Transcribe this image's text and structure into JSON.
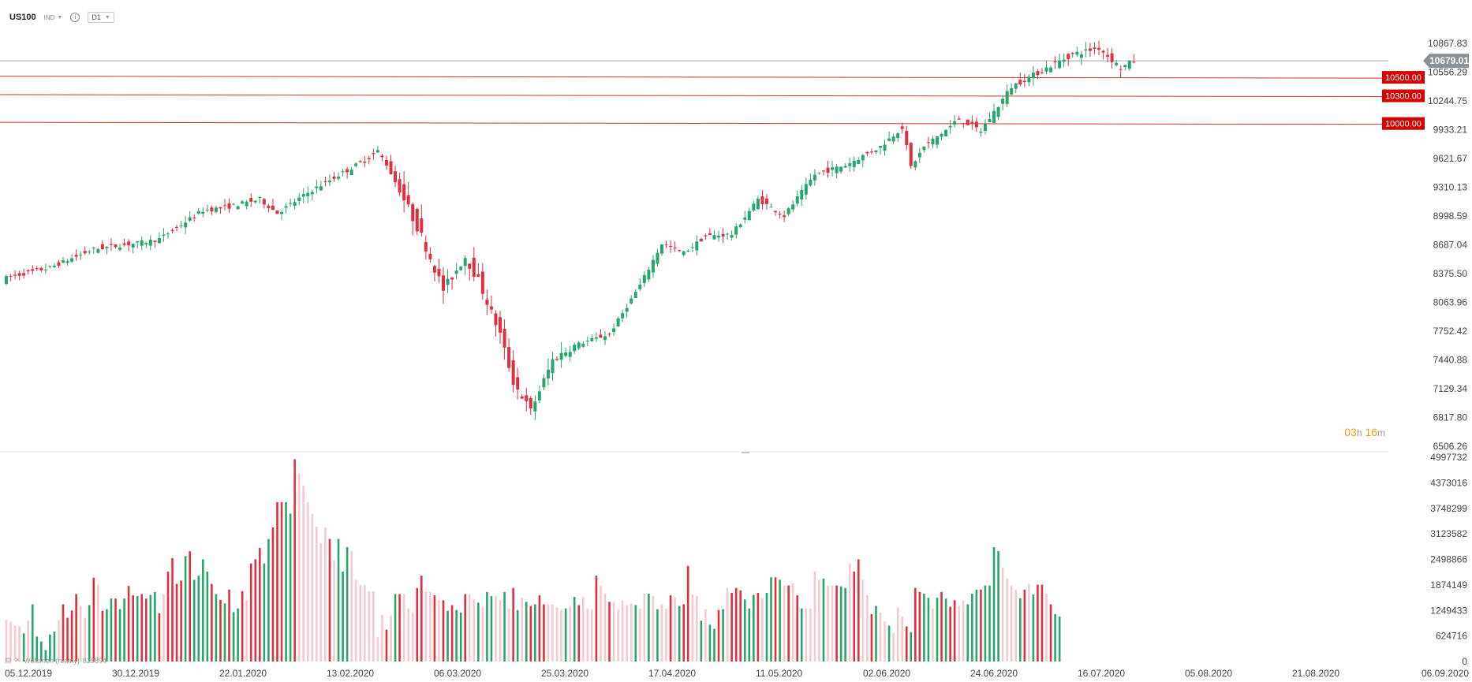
{
  "toolbar": {
    "symbol": "US100",
    "symbol_type": "IND",
    "timeframe": "D1"
  },
  "countdown": {
    "hours": "03",
    "h_unit": "h",
    "minutes": "16",
    "m_unit": "m"
  },
  "volume_legend": {
    "label": "Wolumen (realny)",
    "value": "829894"
  },
  "colors": {
    "up": "#26a66b",
    "down": "#e0303d",
    "level_line": "#d0312d",
    "level_label_bg": "#d40000",
    "last_price_bg": "#8a9196",
    "vol_pale": "#f6c9d0"
  },
  "chart_data": {
    "type": "candlestick",
    "symbol": "US100",
    "price_axis": {
      "ticks": [
        10867.83,
        10556.29,
        10244.75,
        9933.21,
        9621.67,
        9310.13,
        8998.59,
        8687.04,
        8375.5,
        8063.96,
        7752.42,
        7440.88,
        7129.34,
        6817.8,
        6506.26
      ]
    },
    "volume_axis": {
      "ticks": [
        4997732,
        4373016,
        3748299,
        3123582,
        2498866,
        1874149,
        1249433,
        624716,
        0
      ]
    },
    "x_axis": {
      "ticks": [
        "05.12.2019",
        "30.12.2019",
        "22.01.2020",
        "13.02.2020",
        "06.03.2020",
        "25.03.2020",
        "17.04.2020",
        "11.05.2020",
        "02.06.2020",
        "24.06.2020",
        "16.07.2020",
        "05.08.2020",
        "21.08.2020",
        "06.09.2020"
      ]
    },
    "last_price": 10679.01,
    "horizontal_levels": [
      10500.0,
      10300.0,
      10000.0
    ],
    "close_waypoints": [
      [
        0,
        8330
      ],
      [
        10,
        8440
      ],
      [
        20,
        8640
      ],
      [
        32,
        8720
      ],
      [
        35,
        8750
      ],
      [
        45,
        9060
      ],
      [
        50,
        9090
      ],
      [
        58,
        9180
      ],
      [
        62,
        9030
      ],
      [
        70,
        9280
      ],
      [
        82,
        9600
      ],
      [
        85,
        9700
      ],
      [
        87,
        9560
      ],
      [
        92,
        9080
      ],
      [
        95,
        8780
      ],
      [
        100,
        8200
      ],
      [
        105,
        8560
      ],
      [
        108,
        8300
      ],
      [
        113,
        7720
      ],
      [
        116,
        7200
      ],
      [
        120,
        6890
      ],
      [
        125,
        7440
      ],
      [
        130,
        7600
      ],
      [
        138,
        7720
      ],
      [
        145,
        8250
      ],
      [
        150,
        8700
      ],
      [
        155,
        8600
      ],
      [
        160,
        8780
      ],
      [
        166,
        8800
      ],
      [
        172,
        9180
      ],
      [
        178,
        9000
      ],
      [
        185,
        9450
      ],
      [
        192,
        9550
      ],
      [
        200,
        9750
      ],
      [
        205,
        9960
      ],
      [
        207,
        9530
      ],
      [
        210,
        9750
      ],
      [
        215,
        9930
      ],
      [
        218,
        10050
      ],
      [
        223,
        9920
      ],
      [
        230,
        10400
      ],
      [
        238,
        10600
      ],
      [
        244,
        10750
      ],
      [
        250,
        10820
      ],
      [
        255,
        10600
      ],
      [
        258,
        10679
      ]
    ],
    "volume_series": [
      [
        1020000,
        0
      ],
      [
        980000,
        0
      ],
      [
        880000,
        0
      ],
      [
        860000,
        0
      ],
      [
        690000,
        1
      ],
      [
        1000000,
        0
      ],
      [
        1400000,
        1
      ],
      [
        610000,
        1
      ],
      [
        490000,
        1
      ],
      [
        280000,
        1
      ],
      [
        660000,
        1
      ],
      [
        730000,
        1
      ],
      [
        1010000,
        0
      ],
      [
        1400000,
        2
      ],
      [
        1070000,
        2
      ],
      [
        1250000,
        2
      ],
      [
        1650000,
        2
      ],
      [
        1360000,
        0
      ],
      [
        1070000,
        0
      ],
      [
        1380000,
        1
      ],
      [
        2050000,
        2
      ],
      [
        1880000,
        0
      ],
      [
        1240000,
        2
      ],
      [
        1280000,
        1
      ],
      [
        1540000,
        1
      ],
      [
        1540000,
        2
      ],
      [
        1280000,
        1
      ],
      [
        1540000,
        1
      ],
      [
        1850000,
        2
      ],
      [
        1620000,
        2
      ],
      [
        1600000,
        1
      ],
      [
        1650000,
        2
      ],
      [
        1540000,
        2
      ],
      [
        1630000,
        1
      ],
      [
        1700000,
        1
      ],
      [
        1180000,
        2
      ],
      [
        1650000,
        0
      ],
      [
        2200000,
        2
      ],
      [
        2530000,
        2
      ],
      [
        1900000,
        2
      ],
      [
        1980000,
        2
      ],
      [
        2580000,
        1
      ],
      [
        2700000,
        2
      ],
      [
        2000000,
        1
      ],
      [
        2100000,
        1
      ],
      [
        2500000,
        1
      ],
      [
        2200000,
        1
      ],
      [
        1900000,
        2
      ],
      [
        1650000,
        1
      ],
      [
        1510000,
        2
      ],
      [
        1420000,
        1
      ],
      [
        1760000,
        2
      ],
      [
        1210000,
        1
      ],
      [
        1300000,
        1
      ],
      [
        1720000,
        2
      ],
      [
        1500000,
        0
      ],
      [
        2400000,
        2
      ],
      [
        2500000,
        2
      ],
      [
        2780000,
        2
      ],
      [
        2400000,
        1
      ],
      [
        3000000,
        1
      ],
      [
        3280000,
        2
      ],
      [
        3900000,
        2
      ],
      [
        3900000,
        2
      ],
      [
        3900000,
        1
      ],
      [
        3620000,
        1
      ],
      [
        4950000,
        2
      ],
      [
        4600000,
        0
      ],
      [
        4300000,
        0
      ],
      [
        3900000,
        0
      ],
      [
        3620000,
        0
      ],
      [
        3300000,
        0
      ],
      [
        2900000,
        0
      ],
      [
        3280000,
        0
      ],
      [
        3000000,
        2
      ],
      [
        2470000,
        0
      ],
      [
        3000000,
        1
      ],
      [
        2200000,
        1
      ],
      [
        2800000,
        1
      ],
      [
        2700000,
        0
      ],
      [
        2000000,
        0
      ],
      [
        1870000,
        0
      ],
      [
        1870000,
        0
      ],
      [
        1720000,
        0
      ],
      [
        1720000,
        0
      ],
      [
        600000,
        0
      ],
      [
        1150000,
        0
      ],
      [
        780000,
        2
      ],
      [
        1120000,
        0
      ],
      [
        1650000,
        1
      ],
      [
        1650000,
        2
      ],
      [
        1650000,
        0
      ],
      [
        1300000,
        0
      ],
      [
        1200000,
        0
      ],
      [
        1800000,
        2
      ],
      [
        2100000,
        2
      ],
      [
        1700000,
        0
      ],
      [
        1700000,
        0
      ],
      [
        1620000,
        2
      ],
      [
        1500000,
        0
      ],
      [
        1500000,
        2
      ],
      [
        1240000,
        1
      ],
      [
        1380000,
        2
      ],
      [
        1260000,
        1
      ],
      [
        1200000,
        1
      ],
      [
        1650000,
        2
      ],
      [
        1650000,
        0
      ],
      [
        1520000,
        0
      ],
      [
        1440000,
        1
      ],
      [
        1330000,
        0
      ],
      [
        1700000,
        1
      ],
      [
        1600000,
        1
      ],
      [
        1600000,
        0
      ],
      [
        1500000,
        0
      ],
      [
        1700000,
        1
      ],
      [
        1300000,
        0
      ],
      [
        1800000,
        2
      ],
      [
        1260000,
        1
      ],
      [
        1560000,
        0
      ],
      [
        1460000,
        1
      ],
      [
        1360000,
        2
      ],
      [
        1400000,
        1
      ],
      [
        1620000,
        2
      ],
      [
        1400000,
        2
      ],
      [
        1400000,
        0
      ],
      [
        1400000,
        0
      ],
      [
        1320000,
        0
      ],
      [
        1260000,
        0
      ],
      [
        1300000,
        1
      ],
      [
        1360000,
        0
      ],
      [
        1580000,
        1
      ],
      [
        1380000,
        2
      ],
      [
        1580000,
        0
      ],
      [
        1300000,
        0
      ],
      [
        1280000,
        0
      ],
      [
        2100000,
        2
      ],
      [
        1850000,
        0
      ],
      [
        1670000,
        0
      ],
      [
        1460000,
        2
      ],
      [
        1460000,
        0
      ],
      [
        1280000,
        0
      ],
      [
        1500000,
        0
      ],
      [
        1380000,
        0
      ],
      [
        1420000,
        0
      ],
      [
        1380000,
        1
      ],
      [
        1300000,
        0
      ],
      [
        1660000,
        0
      ],
      [
        1660000,
        1
      ],
      [
        1600000,
        0
      ],
      [
        1280000,
        1
      ],
      [
        1400000,
        0
      ],
      [
        1300000,
        0
      ],
      [
        1620000,
        2
      ],
      [
        1580000,
        0
      ],
      [
        1360000,
        1
      ],
      [
        1400000,
        2
      ],
      [
        2340000,
        2
      ],
      [
        1640000,
        0
      ],
      [
        1600000,
        0
      ],
      [
        1000000,
        1
      ],
      [
        1280000,
        0
      ],
      [
        900000,
        1
      ],
      [
        800000,
        1
      ],
      [
        1260000,
        2
      ],
      [
        1280000,
        1
      ],
      [
        1800000,
        0
      ],
      [
        1680000,
        2
      ],
      [
        1800000,
        2
      ],
      [
        1740000,
        2
      ],
      [
        1520000,
        1
      ],
      [
        1300000,
        1
      ],
      [
        1630000,
        1
      ],
      [
        1680000,
        2
      ],
      [
        1560000,
        0
      ],
      [
        1680000,
        1
      ],
      [
        2060000,
        1
      ],
      [
        2060000,
        2
      ],
      [
        2000000,
        1
      ],
      [
        1860000,
        0
      ],
      [
        1860000,
        2
      ],
      [
        1920000,
        0
      ],
      [
        1620000,
        2
      ],
      [
        1300000,
        1
      ],
      [
        1300000,
        0
      ],
      [
        1300000,
        0
      ],
      [
        2200000,
        0
      ],
      [
        2000000,
        0
      ],
      [
        2030000,
        1
      ],
      [
        1860000,
        0
      ],
      [
        1860000,
        0
      ],
      [
        1860000,
        2
      ],
      [
        1840000,
        1
      ],
      [
        1800000,
        1
      ],
      [
        2400000,
        0
      ],
      [
        2200000,
        2
      ],
      [
        2500000,
        2
      ],
      [
        2000000,
        0
      ],
      [
        1620000,
        0
      ],
      [
        1160000,
        2
      ],
      [
        1360000,
        1
      ],
      [
        1200000,
        0
      ],
      [
        980000,
        0
      ],
      [
        880000,
        1
      ],
      [
        700000,
        0
      ],
      [
        1320000,
        0
      ],
      [
        1100000,
        0
      ],
      [
        860000,
        2
      ],
      [
        720000,
        1
      ],
      [
        1800000,
        2
      ],
      [
        1700000,
        2
      ],
      [
        1660000,
        1
      ],
      [
        1560000,
        1
      ],
      [
        1300000,
        0
      ],
      [
        1560000,
        1
      ],
      [
        1700000,
        2
      ],
      [
        1540000,
        1
      ],
      [
        1340000,
        2
      ],
      [
        1500000,
        2
      ],
      [
        1360000,
        0
      ],
      [
        1500000,
        0
      ],
      [
        1400000,
        1
      ],
      [
        1660000,
        1
      ],
      [
        1760000,
        1
      ],
      [
        1760000,
        2
      ],
      [
        1860000,
        1
      ],
      [
        1860000,
        1
      ],
      [
        2800000,
        1
      ],
      [
        2700000,
        1
      ],
      [
        2300000,
        0
      ],
      [
        2030000,
        0
      ],
      [
        1860000,
        0
      ],
      [
        1750000,
        0
      ],
      [
        1550000,
        1
      ],
      [
        1760000,
        2
      ],
      [
        1900000,
        0
      ],
      [
        1640000,
        1
      ],
      [
        1880000,
        2
      ],
      [
        1880000,
        2
      ],
      [
        1660000,
        0
      ],
      [
        1400000,
        2
      ],
      [
        1160000,
        1
      ],
      [
        1100000,
        1
      ]
    ]
  }
}
